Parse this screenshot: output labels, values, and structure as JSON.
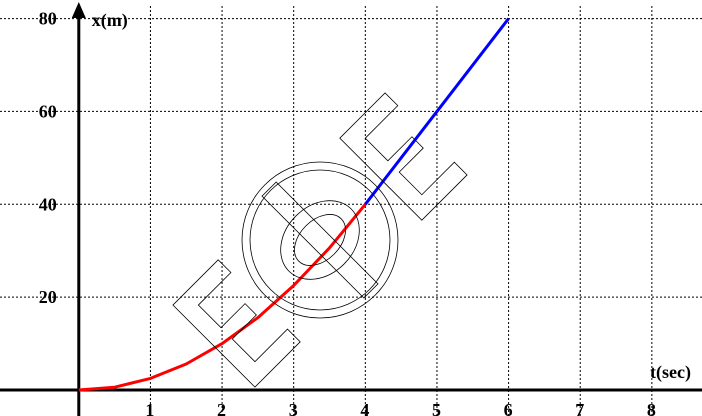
{
  "chart_data": {
    "type": "line",
    "xlabel": "t(sec)",
    "ylabel": "x(m)",
    "xlim": [
      -1.1,
      8.7
    ],
    "ylim": [
      -5.6,
      84
    ],
    "x_ticks": [
      1,
      2,
      3,
      4,
      5,
      6,
      7,
      8
    ],
    "y_ticks": [
      20,
      40,
      60,
      80
    ],
    "x_tick_labels": [
      "1",
      "2",
      "3",
      "4",
      "5",
      "6",
      "7",
      "8"
    ],
    "y_tick_labels": [
      "20",
      "40",
      "60",
      "80"
    ],
    "grid": true,
    "series": [
      {
        "color": "#ff0000",
        "x": [
          0,
          0.5,
          1,
          1.5,
          2,
          2.5,
          3,
          3.5,
          4
        ],
        "y": [
          0,
          0.6,
          2.5,
          5.6,
          10,
          15.6,
          22.5,
          30.6,
          40
        ]
      },
      {
        "color": "#0000ff",
        "x": [
          4,
          5,
          6
        ],
        "y": [
          40,
          60,
          80
        ]
      }
    ]
  }
}
